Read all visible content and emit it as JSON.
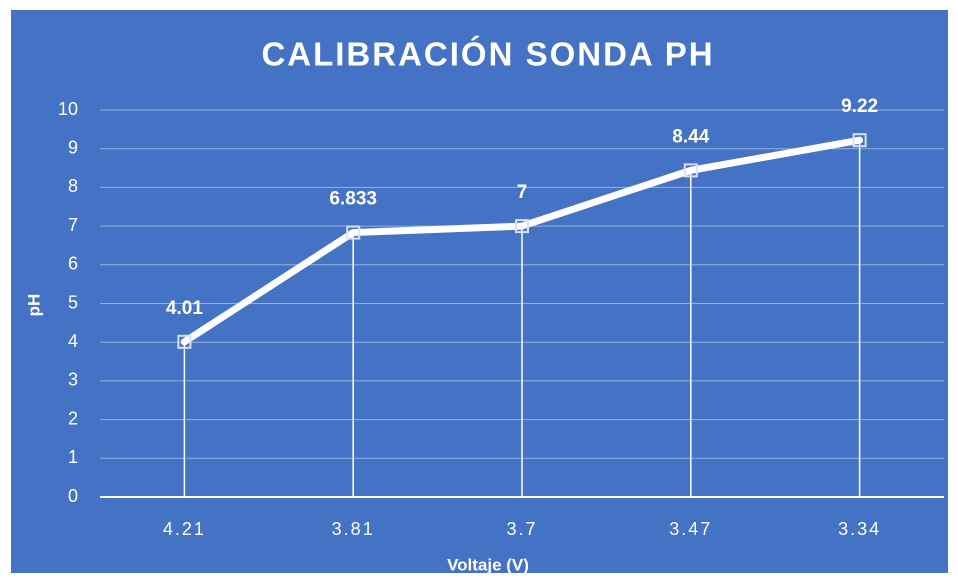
{
  "chart_data": {
    "type": "line",
    "title": "CALIBRACIÓN SONDA PH",
    "x_label": "Voltaje (V)",
    "y_label": "pH",
    "categories": [
      "4.21",
      "3.81",
      "3.7",
      "3.47",
      "3.34"
    ],
    "series": [
      {
        "name": "pH",
        "color": "#ffffff",
        "values": [
          4.01,
          6.833,
          7,
          8.44,
          9.22
        ]
      }
    ],
    "ylim": [
      0,
      10
    ],
    "yticks": [
      0,
      1,
      2,
      3,
      4,
      5,
      6,
      7,
      8,
      9,
      10
    ],
    "grid": true,
    "drop_lines": true,
    "data_labels": true
  }
}
